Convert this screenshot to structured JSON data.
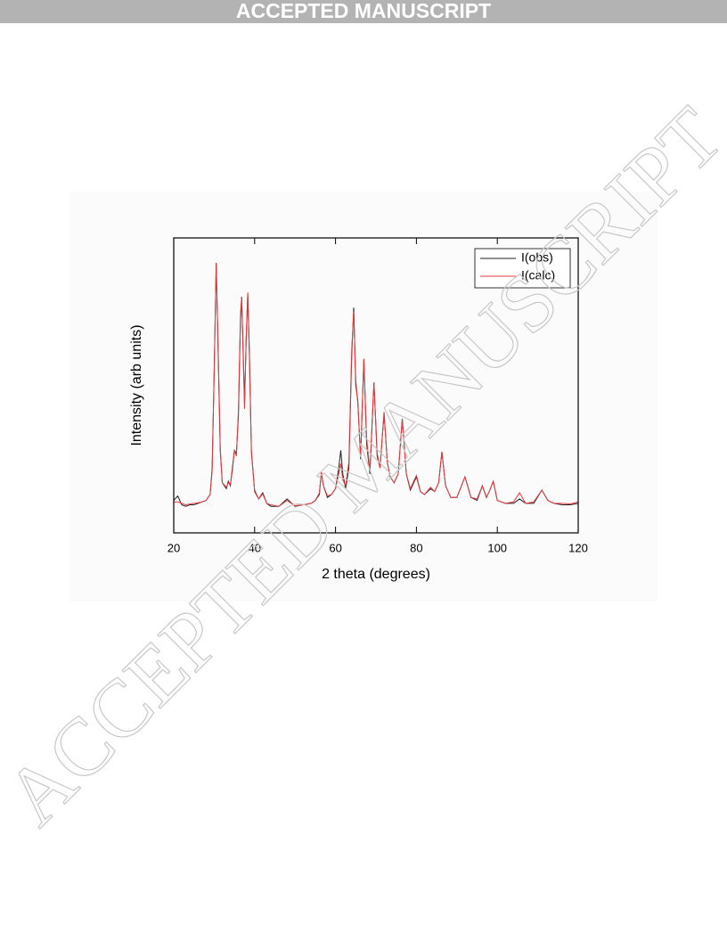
{
  "header": {
    "banner": "ACCEPTED MANUSCRIPT"
  },
  "watermark": "ACCEPTED MANUSCRIPT",
  "chart_data": {
    "type": "line",
    "xlabel": "2 theta (degrees)",
    "ylabel": "Intensity (arb units)",
    "xlim": [
      20,
      120
    ],
    "xticks": [
      20,
      40,
      60,
      80,
      100,
      120
    ],
    "ylim": [
      0,
      100
    ],
    "legend": "upper right",
    "x": [
      20,
      21,
      22,
      23,
      24,
      25,
      26,
      27,
      28,
      29,
      29.5,
      30,
      30.5,
      31,
      31.5,
      32,
      33,
      33.5,
      34,
      34.5,
      35,
      35.5,
      36,
      36.5,
      36.8,
      37.2,
      37.5,
      37.9,
      38.3,
      38.7,
      39.2,
      40,
      41,
      42,
      43,
      44,
      46,
      48,
      50,
      52,
      54,
      55,
      56,
      56.5,
      57,
      58,
      59,
      60,
      60.8,
      61.3,
      61.8,
      62.5,
      63.3,
      64,
      64.5,
      65,
      65.5,
      66.2,
      67,
      67.7,
      68.5,
      69.5,
      70.3,
      71,
      72,
      72.8,
      73.5,
      74.5,
      75.5,
      76.5,
      77.5,
      78.5,
      80,
      81,
      82,
      83.5,
      84.5,
      85.5,
      86.3,
      87.2,
      88.5,
      90,
      92,
      93.5,
      95,
      96.3,
      97.3,
      98,
      99,
      100,
      102,
      104,
      105.5,
      107,
      109,
      111,
      112.5,
      114,
      116,
      118,
      120
    ],
    "series": [
      {
        "name": "I(obs)",
        "color": "#222222",
        "values": [
          11,
          12.5,
          9.5,
          9,
          9.5,
          9.5,
          10,
          10.5,
          11,
          13,
          22,
          55,
          91.5,
          60,
          28,
          17,
          15,
          17.5,
          16,
          22,
          28,
          27,
          40,
          72,
          80,
          60,
          44,
          65,
          81,
          62,
          28,
          14,
          11.5,
          13.6,
          10,
          9,
          9,
          11.5,
          9,
          9.5,
          10,
          11,
          13,
          20.5,
          16,
          12,
          13,
          15,
          22,
          28,
          20,
          15,
          22,
          60,
          76.4,
          50,
          45,
          25,
          59,
          30,
          20,
          51,
          26,
          22,
          40.5,
          24,
          19,
          17,
          20,
          38.7,
          20,
          14.5,
          19,
          14,
          13,
          15,
          14,
          17,
          27.5,
          16,
          12,
          12,
          19,
          12,
          11,
          16,
          12,
          14,
          17.5,
          11,
          10,
          10,
          11.5,
          10,
          10,
          14.5,
          11,
          10,
          9.5,
          9.5,
          10
        ]
      },
      {
        "name": "I(calc)",
        "color": "#e8393d",
        "values": [
          10.5,
          10.5,
          10,
          9.5,
          9.8,
          10,
          10.2,
          10.5,
          11,
          13,
          21,
          54,
          91.5,
          62,
          29,
          17,
          15.5,
          17,
          16.5,
          21,
          28,
          26,
          42,
          74,
          80,
          58,
          42,
          66,
          81.5,
          60,
          27,
          14.5,
          11.5,
          13.2,
          10,
          9.5,
          9,
          11,
          9.2,
          9.5,
          10,
          11,
          13.5,
          20.5,
          16,
          12.5,
          13,
          15,
          20,
          23.5,
          18,
          16,
          24,
          62,
          75,
          52,
          44,
          26,
          59,
          32,
          21,
          51,
          27,
          22,
          41,
          24,
          19,
          17,
          20,
          38.5,
          20,
          15,
          19.5,
          14,
          13,
          15.5,
          14,
          17,
          27.5,
          16,
          12,
          12,
          19,
          12,
          11.5,
          16,
          12,
          14,
          17.5,
          11,
          10,
          10.5,
          13.6,
          10,
          10.5,
          14.5,
          11,
          10,
          10,
          9.8,
          10.5
        ]
      }
    ]
  }
}
